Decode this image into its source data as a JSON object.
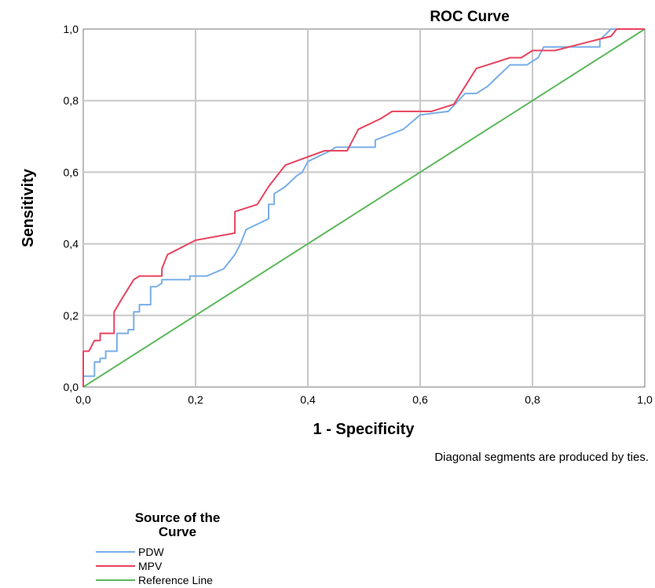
{
  "chart_data": {
    "type": "line",
    "title": "ROC Curve",
    "xlabel": "1 - Specificity",
    "ylabel": "Sensitivity",
    "xlim": [
      0,
      1
    ],
    "ylim": [
      0,
      1
    ],
    "x_ticks": [
      "0,0",
      "0,2",
      "0,4",
      "0,6",
      "0,8",
      "1,0"
    ],
    "y_ticks": [
      "0,0",
      "0,2",
      "0,4",
      "0,6",
      "0,8",
      "1,0"
    ],
    "grid": true,
    "note": "Diagonal segments are produced by ties.",
    "legend": {
      "title_lines": [
        "Source of the",
        "Curve"
      ],
      "placement": "bottom-left"
    },
    "series": [
      {
        "name": "PDW",
        "color": "#79aee8",
        "points": [
          [
            0.0,
            0.0
          ],
          [
            0.0,
            0.03
          ],
          [
            0.02,
            0.03
          ],
          [
            0.02,
            0.07
          ],
          [
            0.03,
            0.07
          ],
          [
            0.03,
            0.08
          ],
          [
            0.04,
            0.08
          ],
          [
            0.04,
            0.1
          ],
          [
            0.06,
            0.1
          ],
          [
            0.06,
            0.15
          ],
          [
            0.08,
            0.15
          ],
          [
            0.08,
            0.16
          ],
          [
            0.09,
            0.16
          ],
          [
            0.09,
            0.21
          ],
          [
            0.1,
            0.21
          ],
          [
            0.1,
            0.23
          ],
          [
            0.12,
            0.23
          ],
          [
            0.12,
            0.28
          ],
          [
            0.13,
            0.28
          ],
          [
            0.14,
            0.29
          ],
          [
            0.14,
            0.3
          ],
          [
            0.19,
            0.3
          ],
          [
            0.19,
            0.31
          ],
          [
            0.22,
            0.31
          ],
          [
            0.25,
            0.33
          ],
          [
            0.27,
            0.37
          ],
          [
            0.28,
            0.4
          ],
          [
            0.29,
            0.44
          ],
          [
            0.33,
            0.47
          ],
          [
            0.33,
            0.51
          ],
          [
            0.34,
            0.51
          ],
          [
            0.34,
            0.54
          ],
          [
            0.36,
            0.56
          ],
          [
            0.38,
            0.59
          ],
          [
            0.39,
            0.6
          ],
          [
            0.4,
            0.63
          ],
          [
            0.44,
            0.66
          ],
          [
            0.45,
            0.67
          ],
          [
            0.52,
            0.67
          ],
          [
            0.52,
            0.69
          ],
          [
            0.57,
            0.72
          ],
          [
            0.6,
            0.76
          ],
          [
            0.65,
            0.77
          ],
          [
            0.68,
            0.82
          ],
          [
            0.7,
            0.82
          ],
          [
            0.72,
            0.84
          ],
          [
            0.76,
            0.9
          ],
          [
            0.79,
            0.9
          ],
          [
            0.81,
            0.92
          ],
          [
            0.82,
            0.95
          ],
          [
            0.92,
            0.95
          ],
          [
            0.92,
            0.97
          ],
          [
            0.94,
            1.0
          ],
          [
            1.0,
            1.0
          ]
        ]
      },
      {
        "name": "MPV",
        "color": "#e8435e",
        "points": [
          [
            0.0,
            0.0
          ],
          [
            0.0,
            0.1
          ],
          [
            0.01,
            0.1
          ],
          [
            0.02,
            0.13
          ],
          [
            0.03,
            0.13
          ],
          [
            0.03,
            0.15
          ],
          [
            0.055,
            0.15
          ],
          [
            0.055,
            0.21
          ],
          [
            0.07,
            0.25
          ],
          [
            0.09,
            0.3
          ],
          [
            0.1,
            0.31
          ],
          [
            0.14,
            0.31
          ],
          [
            0.14,
            0.33
          ],
          [
            0.15,
            0.37
          ],
          [
            0.2,
            0.41
          ],
          [
            0.27,
            0.43
          ],
          [
            0.27,
            0.49
          ],
          [
            0.31,
            0.51
          ],
          [
            0.33,
            0.56
          ],
          [
            0.36,
            0.62
          ],
          [
            0.43,
            0.66
          ],
          [
            0.47,
            0.66
          ],
          [
            0.49,
            0.72
          ],
          [
            0.53,
            0.75
          ],
          [
            0.55,
            0.77
          ],
          [
            0.62,
            0.77
          ],
          [
            0.66,
            0.79
          ],
          [
            0.7,
            0.89
          ],
          [
            0.76,
            0.92
          ],
          [
            0.78,
            0.92
          ],
          [
            0.8,
            0.94
          ],
          [
            0.84,
            0.94
          ],
          [
            0.89,
            0.96
          ],
          [
            0.94,
            0.98
          ],
          [
            0.95,
            1.0
          ],
          [
            1.0,
            1.0
          ]
        ]
      },
      {
        "name": "Reference Line",
        "color": "#5cb85c",
        "points": [
          [
            0,
            0
          ],
          [
            1,
            1
          ]
        ]
      }
    ]
  }
}
